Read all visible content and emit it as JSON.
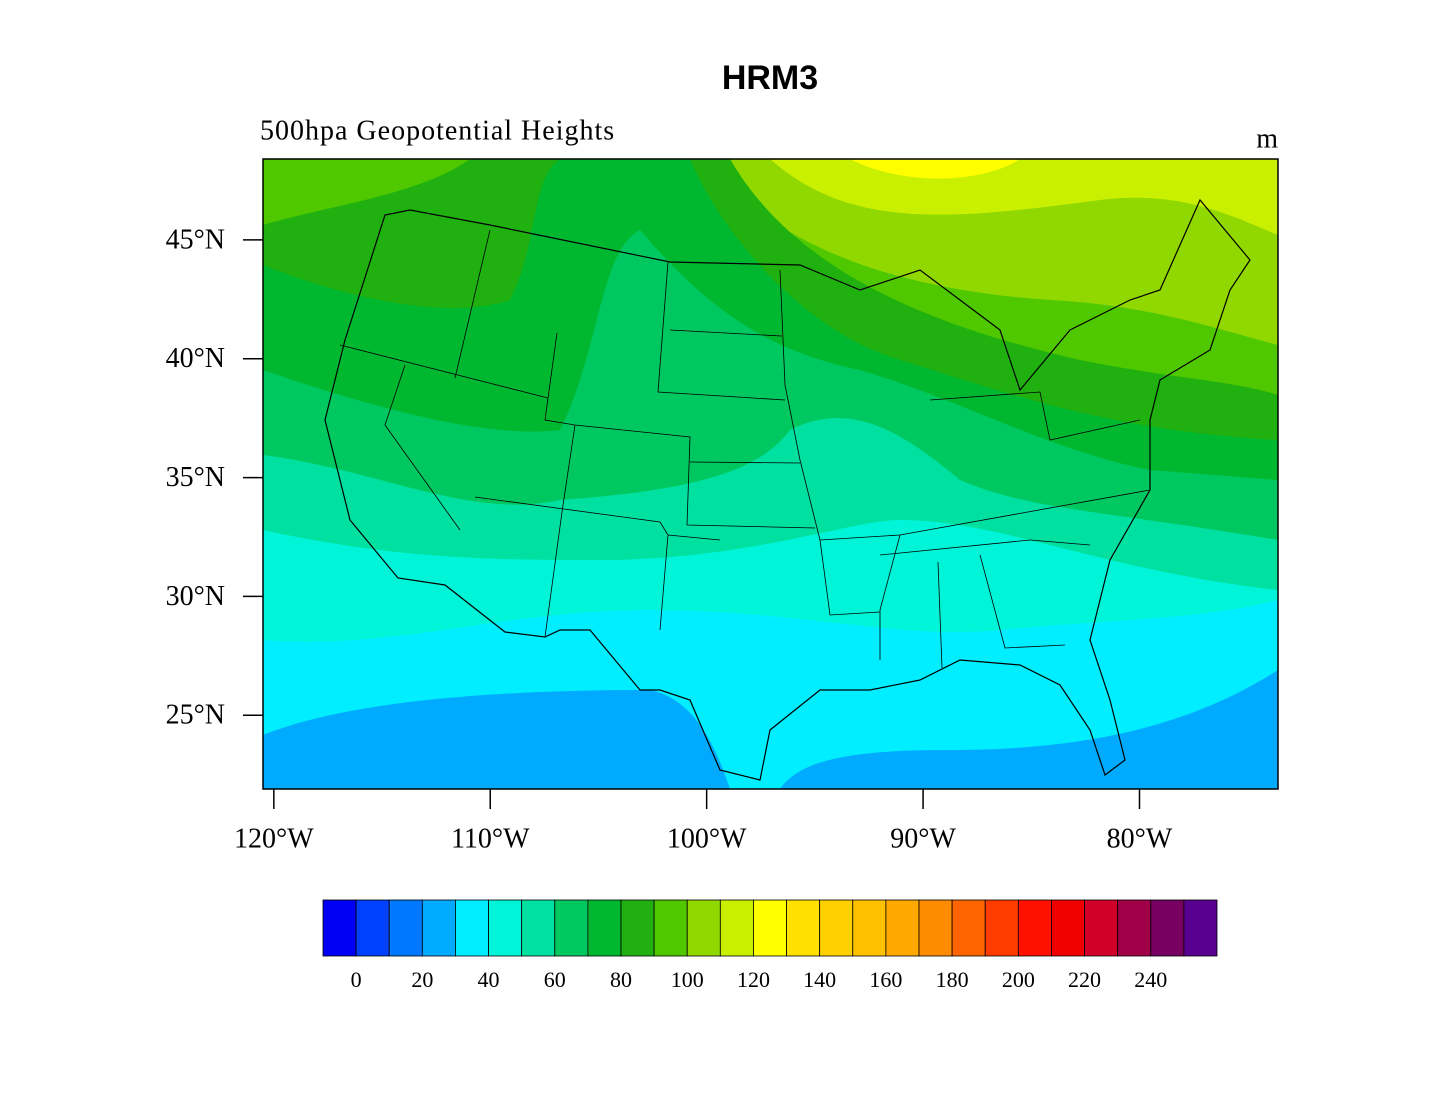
{
  "title": "HRM3",
  "subtitle": "500hpa Geopotential Heights",
  "units": "m",
  "lat_range": [
    21.9,
    48.4
  ],
  "lon_range": [
    -120.5,
    -73.6
  ],
  "lat_ticks": [
    {
      "value": 45,
      "label": "45°N"
    },
    {
      "value": 40,
      "label": "40°N"
    },
    {
      "value": 35,
      "label": "35°N"
    },
    {
      "value": 30,
      "label": "30°N"
    },
    {
      "value": 25,
      "label": "25°N"
    }
  ],
  "lon_ticks": [
    {
      "value": -120,
      "label": "120°W"
    },
    {
      "value": -110,
      "label": "110°W"
    },
    {
      "value": -100,
      "label": "100°W"
    },
    {
      "value": -90,
      "label": "90°W"
    },
    {
      "value": -80,
      "label": "80°W"
    }
  ],
  "colorbar": {
    "colors": [
      "#0000f5",
      "#0040ff",
      "#0078ff",
      "#00aaff",
      "#00eeff",
      "#00f5d8",
      "#00e0a0",
      "#00c860",
      "#00b830",
      "#20b010",
      "#50c800",
      "#90d800",
      "#c8f000",
      "#ffff00",
      "#ffe000",
      "#ffd000",
      "#ffc000",
      "#ffa800",
      "#ff8c00",
      "#ff6400",
      "#ff3c00",
      "#ff1000",
      "#f00000",
      "#d00028",
      "#a00048",
      "#780060",
      "#580090"
    ],
    "labels": [
      0,
      20,
      40,
      60,
      80,
      100,
      120,
      140,
      160,
      180,
      200,
      220,
      240
    ]
  }
}
